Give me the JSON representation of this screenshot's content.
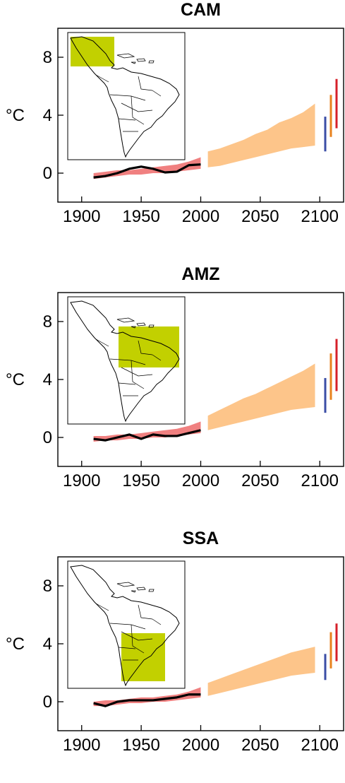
{
  "chart_data": [
    {
      "type": "line",
      "title": "CAM",
      "xlabel": "",
      "ylabel": "°C",
      "xlim": [
        1880,
        2120
      ],
      "ylim": [
        -2,
        10
      ],
      "xticks": [
        1900,
        1950,
        2000,
        2050,
        2100
      ],
      "yticks": [
        0,
        4,
        8
      ],
      "historical_band": {
        "x": [
          1910,
          1920,
          1930,
          1940,
          1950,
          1960,
          1970,
          1980,
          1990,
          2000
        ],
        "low": [
          -0.4,
          -0.3,
          -0.2,
          -0.1,
          -0.1,
          0.0,
          0.0,
          0.1,
          0.2,
          0.3
        ],
        "high": [
          0.0,
          0.1,
          0.2,
          0.2,
          0.3,
          0.4,
          0.5,
          0.6,
          0.8,
          1.1
        ]
      },
      "observed": {
        "x": [
          1910,
          1920,
          1930,
          1940,
          1950,
          1960,
          1970,
          1980,
          1990,
          2000
        ],
        "y": [
          -0.3,
          -0.2,
          0.0,
          0.3,
          0.45,
          0.3,
          0.05,
          0.1,
          0.55,
          0.6
        ]
      },
      "projection_band": {
        "x": [
          2006,
          2016,
          2026,
          2036,
          2046,
          2056,
          2066,
          2076,
          2086,
          2096
        ],
        "low": [
          0.4,
          0.5,
          0.7,
          0.9,
          1.1,
          1.3,
          1.5,
          1.7,
          1.8,
          1.9
        ],
        "high": [
          1.5,
          1.7,
          2.0,
          2.3,
          2.7,
          3.0,
          3.5,
          3.8,
          4.2,
          4.8
        ]
      },
      "end_bars": [
        {
          "color": "#3b4ea6",
          "low": 1.5,
          "high": 3.9
        },
        {
          "color": "#e8821e",
          "low": 2.5,
          "high": 5.4
        },
        {
          "color": "#d6202a",
          "low": 3.1,
          "high": 6.5
        }
      ],
      "map_region": "Central America"
    },
    {
      "type": "line",
      "title": "AMZ",
      "xlabel": "",
      "ylabel": "°C",
      "xlim": [
        1880,
        2120
      ],
      "ylim": [
        -2,
        10
      ],
      "xticks": [
        1900,
        1950,
        2000,
        2050,
        2100
      ],
      "yticks": [
        0,
        4,
        8
      ],
      "historical_band": {
        "x": [
          1910,
          1920,
          1930,
          1940,
          1950,
          1960,
          1970,
          1980,
          1990,
          2000
        ],
        "low": [
          -0.3,
          -0.2,
          -0.2,
          -0.1,
          -0.1,
          0.0,
          0.0,
          0.1,
          0.2,
          0.3
        ],
        "high": [
          0.1,
          0.1,
          0.2,
          0.2,
          0.3,
          0.4,
          0.5,
          0.6,
          0.8,
          1.1
        ]
      },
      "observed": {
        "x": [
          1910,
          1920,
          1930,
          1940,
          1950,
          1960,
          1970,
          1980,
          1990,
          2000
        ],
        "y": [
          -0.1,
          -0.2,
          0.0,
          0.2,
          -0.1,
          0.2,
          0.1,
          0.1,
          0.3,
          0.5
        ]
      },
      "projection_band": {
        "x": [
          2006,
          2016,
          2026,
          2036,
          2046,
          2056,
          2066,
          2076,
          2086,
          2096
        ],
        "low": [
          0.5,
          0.7,
          0.9,
          1.1,
          1.3,
          1.5,
          1.7,
          1.9,
          2.0,
          2.1
        ],
        "high": [
          1.5,
          1.9,
          2.3,
          2.7,
          3.0,
          3.4,
          3.8,
          4.2,
          4.6,
          5.1
        ]
      },
      "end_bars": [
        {
          "color": "#3b4ea6",
          "low": 1.7,
          "high": 4.1
        },
        {
          "color": "#e8821e",
          "low": 2.6,
          "high": 5.8
        },
        {
          "color": "#d6202a",
          "low": 3.2,
          "high": 6.8
        }
      ],
      "map_region": "Amazon"
    },
    {
      "type": "line",
      "title": "SSA",
      "xlabel": "",
      "ylabel": "°C",
      "xlim": [
        1880,
        2120
      ],
      "ylim": [
        -2,
        10
      ],
      "xticks": [
        1900,
        1950,
        2000,
        2050,
        2100
      ],
      "yticks": [
        0,
        4,
        8
      ],
      "historical_band": {
        "x": [
          1910,
          1920,
          1930,
          1940,
          1950,
          1960,
          1970,
          1980,
          1990,
          2000
        ],
        "low": [
          -0.3,
          -0.3,
          -0.2,
          -0.1,
          -0.1,
          0.0,
          0.0,
          0.1,
          0.2,
          0.3
        ],
        "high": [
          0.0,
          0.1,
          0.1,
          0.2,
          0.3,
          0.3,
          0.4,
          0.5,
          0.7,
          1.0
        ]
      },
      "observed": {
        "x": [
          1910,
          1920,
          1930,
          1940,
          1950,
          1960,
          1970,
          1980,
          1990,
          2000
        ],
        "y": [
          -0.1,
          -0.3,
          0.0,
          0.1,
          0.1,
          0.1,
          0.2,
          0.3,
          0.5,
          0.5
        ]
      },
      "projection_band": {
        "x": [
          2006,
          2016,
          2026,
          2036,
          2046,
          2056,
          2066,
          2076,
          2086,
          2096
        ],
        "low": [
          0.4,
          0.6,
          0.8,
          1.0,
          1.2,
          1.4,
          1.6,
          1.8,
          1.9,
          2.0
        ],
        "high": [
          1.3,
          1.6,
          1.9,
          2.2,
          2.5,
          2.8,
          3.1,
          3.4,
          3.6,
          3.8
        ]
      },
      "end_bars": [
        {
          "color": "#3b4ea6",
          "low": 1.5,
          "high": 3.3
        },
        {
          "color": "#e8821e",
          "low": 2.3,
          "high": 4.8
        },
        {
          "color": "#d6202a",
          "low": 2.8,
          "high": 5.4
        }
      ],
      "map_region": "Southeastern South America"
    }
  ],
  "colors": {
    "historical_band": "#f08080",
    "projection_band": "#fdc58a",
    "observed_line": "#000000",
    "map_highlight": "#c2d000",
    "axis": "#000000"
  }
}
